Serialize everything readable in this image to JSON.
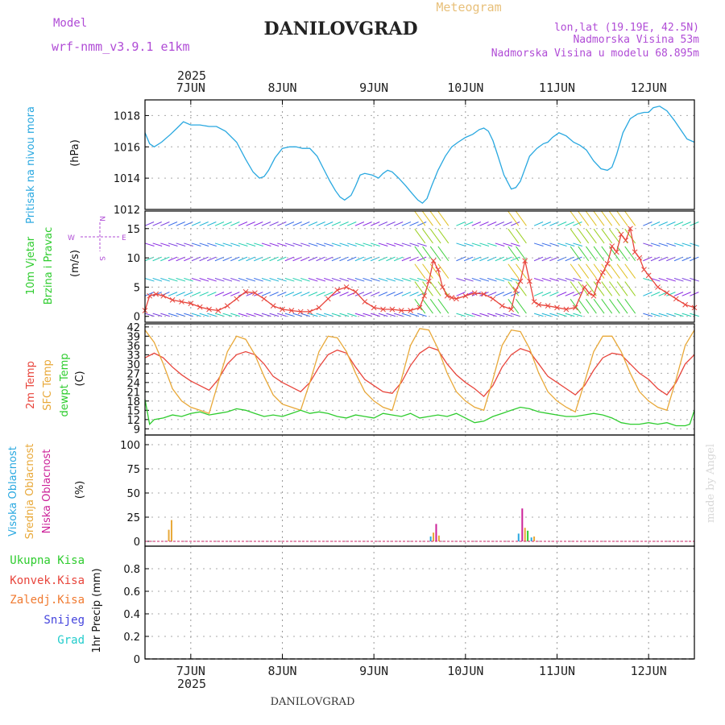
{
  "header": {
    "model_label": "Model",
    "model_name": "wrf-nmm_v3.9.1  e1km",
    "title": "DANILOVGRAD",
    "meteogram_label": "Meteogram",
    "location": "lon,lat (19.19E, 42.5N)",
    "elevation": "Nadmorska Visina 53m",
    "model_elevation": "Nadmorska Visina u modelu 68.895m",
    "year_top": "2025",
    "year_bottom": "2025",
    "footer_title": "DANILOVGRAD",
    "credit": "made by Angel"
  },
  "colors": {
    "pressure": "#29a8e0",
    "temp2m": "#e8453c",
    "sfc": "#e8a838",
    "dewpt": "#2ecc2e",
    "high_cloud": "#29a8e0",
    "mid_cloud": "#e8a838",
    "low_cloud": "#cc2299",
    "model_text": "#b04cd6",
    "meteogram_text": "#e8c07a"
  },
  "labels": {
    "pressure_title": "Pritisak na nivou mora",
    "pressure_unit": "(hPa)",
    "wind_title1": "10m Vjetar",
    "wind_title2": "Brzina i Pravac",
    "wind_unit": "(m/s)",
    "compass_w": "W",
    "compass_e": "E",
    "compass_n": "N",
    "compass_s": "S",
    "temp_2m": "2m Temp",
    "temp_sfc": "SFC Temp",
    "temp_dew": "dewpt Temp",
    "temp_unit": "(C)",
    "cloud_high": "Visoka Oblacnost",
    "cloud_mid": "Srednja Oblacnost",
    "cloud_low": "Niska Oblacnost",
    "cloud_unit": "(%)",
    "precip_total": "Ukupna Kisa",
    "precip_conv": "Konvek.Kisa",
    "precip_frz": "Zaledj.Kisa",
    "precip_snow": "Snijeg",
    "precip_hail": "Grad",
    "precip_unit": "1hr Precip (mm)"
  },
  "chart_data": {
    "type": "line",
    "x_start_day": 6.5,
    "x_end_day": 12.5,
    "day_labels": [
      "7JUN",
      "8JUN",
      "9JUN",
      "10JUN",
      "11JUN",
      "12JUN"
    ],
    "day_positions": [
      7,
      8,
      9,
      10,
      11,
      12
    ],
    "panels": [
      {
        "id": "pressure",
        "ylabel": "Pritisak na nivou mora (hPa)",
        "ylim": [
          1012,
          1019
        ],
        "yticks": [
          1012,
          1014,
          1016,
          1018
        ],
        "series": [
          {
            "color_key": "pressure",
            "x": [
              6.5,
              6.55,
              6.6,
              6.68,
              6.78,
              6.85,
              6.92,
              7.0,
              7.1,
              7.2,
              7.28,
              7.38,
              7.5,
              7.6,
              7.68,
              7.75,
              7.8,
              7.85,
              7.92,
              8.0,
              8.08,
              8.15,
              8.22,
              8.3,
              8.38,
              8.45,
              8.52,
              8.58,
              8.63,
              8.68,
              8.75,
              8.8,
              8.85,
              8.9,
              8.98,
              9.05,
              9.1,
              9.15,
              9.2,
              9.27,
              9.35,
              9.42,
              9.48,
              9.53,
              9.58,
              9.63,
              9.7,
              9.78,
              9.85,
              9.92,
              10.0,
              10.08,
              10.15,
              10.2,
              10.25,
              10.3,
              10.35,
              10.42,
              10.5,
              10.55,
              10.6,
              10.65,
              10.7,
              10.78,
              10.85,
              10.9,
              10.95,
              11.02,
              11.1,
              11.18,
              11.25,
              11.32,
              11.4,
              11.48,
              11.55,
              11.6,
              11.65,
              11.72,
              11.8,
              11.88,
              11.95,
              12.0,
              12.05,
              12.12,
              12.2,
              12.28,
              12.35,
              12.42,
              12.5
            ],
            "y": [
              1016.9,
              1016.2,
              1016.0,
              1016.3,
              1016.8,
              1017.2,
              1017.6,
              1017.4,
              1017.4,
              1017.3,
              1017.3,
              1017.0,
              1016.3,
              1015.2,
              1014.4,
              1014.0,
              1014.1,
              1014.5,
              1015.3,
              1015.9,
              1016.0,
              1016.0,
              1015.9,
              1015.9,
              1015.4,
              1014.6,
              1013.8,
              1013.2,
              1012.8,
              1012.6,
              1012.9,
              1013.5,
              1014.2,
              1014.3,
              1014.2,
              1014.0,
              1014.3,
              1014.5,
              1014.4,
              1014.0,
              1013.5,
              1013.0,
              1012.6,
              1012.4,
              1012.7,
              1013.5,
              1014.5,
              1015.4,
              1016.0,
              1016.3,
              1016.6,
              1016.8,
              1017.1,
              1017.2,
              1017.0,
              1016.4,
              1015.5,
              1014.2,
              1013.3,
              1013.4,
              1013.8,
              1014.6,
              1015.4,
              1015.9,
              1016.2,
              1016.3,
              1016.6,
              1016.9,
              1016.7,
              1016.3,
              1016.1,
              1015.8,
              1015.1,
              1014.6,
              1014.5,
              1014.7,
              1015.5,
              1016.9,
              1017.8,
              1018.1,
              1018.2,
              1018.2,
              1018.5,
              1018.6,
              1018.3,
              1017.7,
              1017.1,
              1016.5,
              1016.3
            ]
          }
        ]
      },
      {
        "id": "wind",
        "ylabel": "10m Vjetar Brzina i Pravac (m/s)",
        "ylim": [
          -1,
          18
        ],
        "yticks": [
          0,
          5,
          10,
          15
        ],
        "series": [
          {
            "name": "speed",
            "color_key": "temp2m",
            "x": [
              6.5,
              6.55,
              6.62,
              6.7,
              6.8,
              6.9,
              7.0,
              7.1,
              7.2,
              7.3,
              7.4,
              7.5,
              7.6,
              7.7,
              7.8,
              7.9,
              8.0,
              8.1,
              8.2,
              8.3,
              8.4,
              8.5,
              8.6,
              8.7,
              8.8,
              8.9,
              9.0,
              9.1,
              9.2,
              9.3,
              9.4,
              9.5,
              9.55,
              9.6,
              9.65,
              9.7,
              9.75,
              9.8,
              9.85,
              9.9,
              10.0,
              10.1,
              10.2,
              10.3,
              10.4,
              10.5,
              10.55,
              10.6,
              10.65,
              10.7,
              10.75,
              10.8,
              10.9,
              11.0,
              11.1,
              11.2,
              11.3,
              11.35,
              11.4,
              11.45,
              11.5,
              11.55,
              11.6,
              11.65,
              11.7,
              11.75,
              11.8,
              11.85,
              11.9,
              11.95,
              12.0,
              12.1,
              12.2,
              12.3,
              12.4,
              12.5
            ],
            "y": [
              1.0,
              3.5,
              3.8,
              3.5,
              2.8,
              2.5,
              2.2,
              1.6,
              1.2,
              1.0,
              1.8,
              3.0,
              4.2,
              4.0,
              3.0,
              1.8,
              1.2,
              1.0,
              0.8,
              0.8,
              1.5,
              3.0,
              4.5,
              5.0,
              4.2,
              2.5,
              1.5,
              1.2,
              1.2,
              1.0,
              1.0,
              1.5,
              3.5,
              6.0,
              9.5,
              8.0,
              5.0,
              3.5,
              3.2,
              3.0,
              3.5,
              4.0,
              3.8,
              3.0,
              1.8,
              1.2,
              4.5,
              6.0,
              9.5,
              6.0,
              2.5,
              2.0,
              1.8,
              1.5,
              1.2,
              1.5,
              5.0,
              4.0,
              3.5,
              6.0,
              7.5,
              9.0,
              12.0,
              11.0,
              14.0,
              13.0,
              15.0,
              11.0,
              10.0,
              8.0,
              7.0,
              5.0,
              4.0,
              3.0,
              2.0,
              1.5
            ]
          }
        ]
      },
      {
        "id": "temperature",
        "ylabel": "(C)",
        "ylim": [
          7,
          43
        ],
        "yticks": [
          9,
          12,
          15,
          18,
          21,
          24,
          27,
          30,
          33,
          36,
          39,
          42
        ],
        "series": [
          {
            "name": "2m Temp",
            "color_key": "temp2m",
            "x": [
              6.5,
              6.6,
              6.7,
              6.8,
              6.9,
              7.0,
              7.1,
              7.2,
              7.3,
              7.4,
              7.5,
              7.6,
              7.7,
              7.8,
              7.9,
              8.0,
              8.1,
              8.2,
              8.3,
              8.4,
              8.5,
              8.6,
              8.7,
              8.8,
              8.9,
              9.0,
              9.1,
              9.2,
              9.3,
              9.4,
              9.5,
              9.6,
              9.7,
              9.8,
              9.9,
              10.0,
              10.1,
              10.2,
              10.3,
              10.4,
              10.5,
              10.6,
              10.7,
              10.8,
              10.9,
              11.0,
              11.1,
              11.2,
              11.3,
              11.4,
              11.5,
              11.6,
              11.7,
              11.8,
              11.9,
              12.0,
              12.1,
              12.2,
              12.3,
              12.4,
              12.5
            ],
            "y": [
              32,
              33.5,
              32,
              29,
              26.5,
              24.5,
              23,
              21.5,
              25,
              30,
              33,
              34,
              33,
              30,
              26,
              24,
              22.5,
              21,
              24,
              29,
              33,
              34.5,
              33.5,
              29,
              25,
              23,
              21,
              20.5,
              24,
              29.5,
              33.5,
              35.5,
              34.5,
              30,
              26.5,
              24,
              22,
              19.5,
              23,
              29,
              33,
              35,
              34,
              30,
              26,
              24,
              22,
              20,
              23,
              28,
              32,
              33.5,
              33,
              30,
              27,
              25,
              22,
              20,
              24,
              30,
              33
            ]
          },
          {
            "name": "SFC Temp",
            "color_key": "sfc",
            "x": [
              6.5,
              6.6,
              6.7,
              6.8,
              6.9,
              7.0,
              7.1,
              7.2,
              7.3,
              7.4,
              7.5,
              7.6,
              7.7,
              7.8,
              7.9,
              8.0,
              8.1,
              8.2,
              8.3,
              8.4,
              8.5,
              8.6,
              8.7,
              8.8,
              8.9,
              9.0,
              9.1,
              9.2,
              9.3,
              9.4,
              9.5,
              9.6,
              9.7,
              9.8,
              9.9,
              10.0,
              10.1,
              10.2,
              10.3,
              10.4,
              10.5,
              10.6,
              10.7,
              10.8,
              10.9,
              11.0,
              11.1,
              11.2,
              11.3,
              11.4,
              11.5,
              11.6,
              11.7,
              11.8,
              11.9,
              12.0,
              12.1,
              12.2,
              12.3,
              12.4,
              12.5
            ],
            "y": [
              41,
              37,
              30,
              22,
              18,
              16,
              15,
              14,
              24,
              34,
              39,
              38,
              33,
              26,
              20,
              17,
              16,
              15,
              24,
              34,
              39,
              38.5,
              34,
              27,
              21,
              18,
              16,
              15,
              25,
              36,
              41.5,
              41,
              35,
              27,
              21,
              18,
              16,
              15,
              25,
              36,
              41,
              40.5,
              35,
              27,
              21,
              18,
              16,
              14.5,
              24,
              34,
              39,
              39,
              34,
              27,
              21,
              18,
              16,
              15,
              25,
              36,
              41
            ]
          },
          {
            "name": "dewpt Temp",
            "color_key": "dewpt",
            "x": [
              6.5,
              6.55,
              6.6,
              6.7,
              6.8,
              6.9,
              7.0,
              7.1,
              7.2,
              7.3,
              7.4,
              7.5,
              7.6,
              7.7,
              7.8,
              7.9,
              8.0,
              8.1,
              8.2,
              8.3,
              8.4,
              8.5,
              8.6,
              8.7,
              8.8,
              8.9,
              9.0,
              9.1,
              9.2,
              9.3,
              9.4,
              9.5,
              9.6,
              9.7,
              9.8,
              9.9,
              10.0,
              10.1,
              10.2,
              10.3,
              10.4,
              10.5,
              10.6,
              10.7,
              10.8,
              10.9,
              11.0,
              11.1,
              11.2,
              11.3,
              11.4,
              11.5,
              11.6,
              11.7,
              11.8,
              11.9,
              12.0,
              12.1,
              12.2,
              12.3,
              12.4,
              12.45,
              12.5
            ],
            "y": [
              18.5,
              10.5,
              12,
              12.5,
              13.5,
              13,
              14,
              14.5,
              13.5,
              14,
              14.5,
              15.5,
              15,
              14,
              13,
              13.5,
              13,
              14,
              15,
              14,
              14.5,
              14,
              13,
              12.5,
              13.5,
              13,
              12.5,
              14,
              13.5,
              13,
              14,
              12.5,
              13,
              13.5,
              13,
              14,
              12.5,
              11,
              11.5,
              13,
              14,
              15,
              16,
              15.5,
              14.5,
              14,
              13.5,
              13,
              13,
              13.5,
              14,
              13.5,
              12.5,
              11,
              10.5,
              10.5,
              11,
              10.5,
              11,
              10,
              10,
              10.5,
              15
            ]
          }
        ]
      },
      {
        "id": "clouds",
        "ylabel": "(%)",
        "ylim": [
          -5,
          110
        ],
        "yticks": [
          0,
          25,
          50,
          75,
          100
        ],
        "bars": [
          {
            "color_key": "mid_cloud",
            "x": 6.76,
            "value": 12
          },
          {
            "color_key": "mid_cloud",
            "x": 6.79,
            "value": 22
          },
          {
            "color_key": "high_cloud",
            "x": 9.62,
            "value": 5
          },
          {
            "color_key": "mid_cloud",
            "x": 9.65,
            "value": 9
          },
          {
            "color_key": "low_cloud",
            "x": 9.68,
            "value": 18
          },
          {
            "color_key": "mid_cloud",
            "x": 9.71,
            "value": 6
          },
          {
            "color_key": "high_cloud",
            "x": 10.58,
            "value": 8
          },
          {
            "color_key": "low_cloud",
            "x": 10.62,
            "value": 34
          },
          {
            "color_key": "mid_cloud",
            "x": 10.65,
            "value": 14
          },
          {
            "color_key": "dewpt",
            "x": 10.68,
            "value": 11
          },
          {
            "color_key": "high_cloud",
            "x": 10.72,
            "value": 4
          },
          {
            "color_key": "mid_cloud",
            "x": 10.75,
            "value": 5
          }
        ]
      },
      {
        "id": "precip",
        "ylabel": "1hr Precip (mm)",
        "ylim": [
          0,
          1.0
        ],
        "yticks": [
          0,
          0.2,
          0.4,
          0.6,
          0.8
        ],
        "series": []
      }
    ]
  }
}
